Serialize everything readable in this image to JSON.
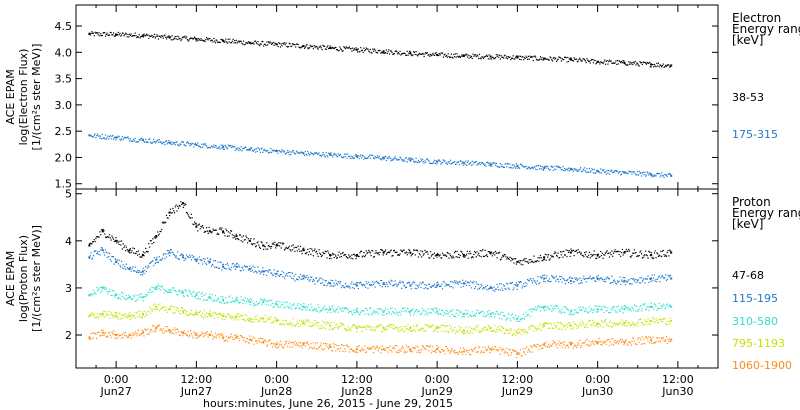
{
  "chart_data": [
    {
      "type": "scatter",
      "panel": "electron",
      "ylabel_lines": [
        "ACE EPAM",
        "log(Electron Flux)",
        "[1/(cm²s ster MeV)]"
      ],
      "ylim": [
        1.4,
        4.9
      ],
      "yticks": [
        1.5,
        2.0,
        2.5,
        3.0,
        3.5,
        4.0,
        4.5
      ],
      "ytick_labels": [
        "1.5",
        "2.0",
        "2.5",
        "3.0",
        "3.5",
        "4.0",
        "4.5"
      ],
      "legend_title": [
        "Electron",
        "Energy ranges",
        "[keV]"
      ],
      "series": [
        {
          "name": "38-53",
          "color": "#000000",
          "x": [
            -4,
            0,
            4,
            8,
            12,
            16,
            20,
            24,
            28,
            32,
            36,
            40,
            44,
            48,
            52,
            56,
            60,
            64,
            68,
            72,
            76,
            80,
            83
          ],
          "y": [
            4.35,
            4.34,
            4.32,
            4.28,
            4.25,
            4.22,
            4.18,
            4.15,
            4.12,
            4.08,
            4.05,
            4.02,
            3.98,
            3.95,
            3.93,
            3.92,
            3.9,
            3.88,
            3.86,
            3.82,
            3.8,
            3.77,
            3.75
          ]
        },
        {
          "name": "175-315",
          "color": "#1f77cc",
          "x": [
            -4,
            0,
            4,
            8,
            12,
            16,
            20,
            24,
            28,
            32,
            36,
            40,
            44,
            48,
            52,
            56,
            60,
            64,
            68,
            72,
            76,
            80,
            83
          ],
          "y": [
            2.42,
            2.38,
            2.33,
            2.28,
            2.24,
            2.2,
            2.15,
            2.12,
            2.08,
            2.05,
            2.02,
            1.99,
            1.95,
            1.92,
            1.9,
            1.87,
            1.84,
            1.8,
            1.78,
            1.74,
            1.71,
            1.68,
            1.65
          ]
        }
      ]
    },
    {
      "type": "scatter",
      "panel": "proton",
      "ylabel_lines": [
        "ACE EPAM",
        "log(Proton Flux)",
        "[1/(cm²s ster MeV)]"
      ],
      "ylim": [
        1.3,
        5.1
      ],
      "yticks": [
        2,
        3,
        4,
        5
      ],
      "ytick_labels": [
        "2",
        "3",
        "4",
        "5"
      ],
      "legend_title": [
        "Proton",
        "Energy ranges",
        "[keV]"
      ],
      "series": [
        {
          "name": "47-68",
          "color": "#000000",
          "x": [
            -4,
            -2,
            0,
            2,
            4,
            6,
            8,
            10,
            12,
            14,
            16,
            18,
            20,
            22,
            24,
            28,
            32,
            36,
            40,
            44,
            48,
            52,
            56,
            60,
            64,
            68,
            72,
            76,
            80,
            83
          ],
          "y": [
            3.9,
            4.2,
            4.0,
            3.8,
            3.7,
            4.1,
            4.6,
            4.8,
            4.3,
            4.2,
            4.2,
            4.1,
            4.0,
            3.9,
            3.9,
            3.8,
            3.7,
            3.7,
            3.75,
            3.75,
            3.7,
            3.7,
            3.75,
            3.55,
            3.65,
            3.75,
            3.7,
            3.75,
            3.7,
            3.75
          ]
        },
        {
          "name": "115-195",
          "color": "#1f77cc",
          "x": [
            -4,
            -2,
            0,
            2,
            4,
            6,
            8,
            10,
            12,
            14,
            16,
            18,
            20,
            22,
            24,
            28,
            32,
            36,
            40,
            44,
            48,
            52,
            56,
            60,
            64,
            68,
            72,
            76,
            80,
            83
          ],
          "y": [
            3.65,
            3.8,
            3.55,
            3.4,
            3.35,
            3.6,
            3.75,
            3.65,
            3.6,
            3.55,
            3.45,
            3.45,
            3.4,
            3.35,
            3.3,
            3.2,
            3.1,
            3.05,
            3.1,
            3.05,
            3.05,
            3.1,
            3.0,
            3.05,
            3.2,
            3.15,
            3.2,
            3.15,
            3.2,
            3.2
          ]
        },
        {
          "name": "310-580",
          "color": "#33e0cc",
          "x": [
            -4,
            -2,
            0,
            2,
            4,
            6,
            8,
            10,
            12,
            14,
            16,
            18,
            20,
            22,
            24,
            28,
            32,
            36,
            40,
            44,
            48,
            52,
            56,
            60,
            64,
            68,
            72,
            76,
            80,
            83
          ],
          "y": [
            2.85,
            3.0,
            2.85,
            2.8,
            2.8,
            3.0,
            2.95,
            2.9,
            2.85,
            2.8,
            2.75,
            2.75,
            2.7,
            2.7,
            2.65,
            2.6,
            2.55,
            2.5,
            2.5,
            2.5,
            2.5,
            2.45,
            2.45,
            2.35,
            2.6,
            2.5,
            2.55,
            2.55,
            2.6,
            2.6
          ]
        },
        {
          "name": "795-1193",
          "color": "#c8e000",
          "x": [
            -4,
            -2,
            0,
            2,
            4,
            6,
            8,
            10,
            12,
            14,
            16,
            18,
            20,
            22,
            24,
            28,
            32,
            36,
            40,
            44,
            48,
            52,
            56,
            60,
            64,
            68,
            72,
            76,
            80,
            83
          ],
          "y": [
            2.4,
            2.45,
            2.4,
            2.4,
            2.45,
            2.6,
            2.55,
            2.5,
            2.45,
            2.45,
            2.4,
            2.4,
            2.35,
            2.35,
            2.3,
            2.25,
            2.2,
            2.15,
            2.15,
            2.15,
            2.15,
            2.1,
            2.15,
            2.05,
            2.2,
            2.2,
            2.25,
            2.25,
            2.3,
            2.3
          ]
        },
        {
          "name": "1060-1900",
          "color": "#ff8c1a",
          "x": [
            -4,
            -2,
            0,
            2,
            4,
            6,
            8,
            10,
            12,
            14,
            16,
            18,
            20,
            22,
            24,
            28,
            32,
            36,
            40,
            44,
            48,
            52,
            56,
            60,
            64,
            68,
            72,
            76,
            80,
            83
          ],
          "y": [
            1.95,
            2.05,
            2.0,
            2.0,
            2.05,
            2.15,
            2.1,
            2.05,
            2.0,
            2.0,
            1.95,
            1.95,
            1.9,
            1.85,
            1.8,
            1.8,
            1.75,
            1.7,
            1.7,
            1.7,
            1.7,
            1.65,
            1.7,
            1.6,
            1.8,
            1.8,
            1.85,
            1.85,
            1.9,
            1.9
          ]
        }
      ]
    }
  ],
  "x_axis": {
    "xlim": [
      -6,
      90
    ],
    "tick_hours": [
      0,
      12,
      24,
      36,
      48,
      60,
      72,
      84
    ],
    "tick_times": [
      "0:00",
      "12:00",
      "0:00",
      "12:00",
      "0:00",
      "12:00",
      "0:00",
      "12:00"
    ],
    "tick_dates": [
      "Jun27",
      "Jun27",
      "Jun28",
      "Jun28",
      "Jun29",
      "Jun29",
      "Jun30",
      "Jun30"
    ],
    "label": "hours:minutes, June 26, 2015 - June 29, 2015"
  }
}
